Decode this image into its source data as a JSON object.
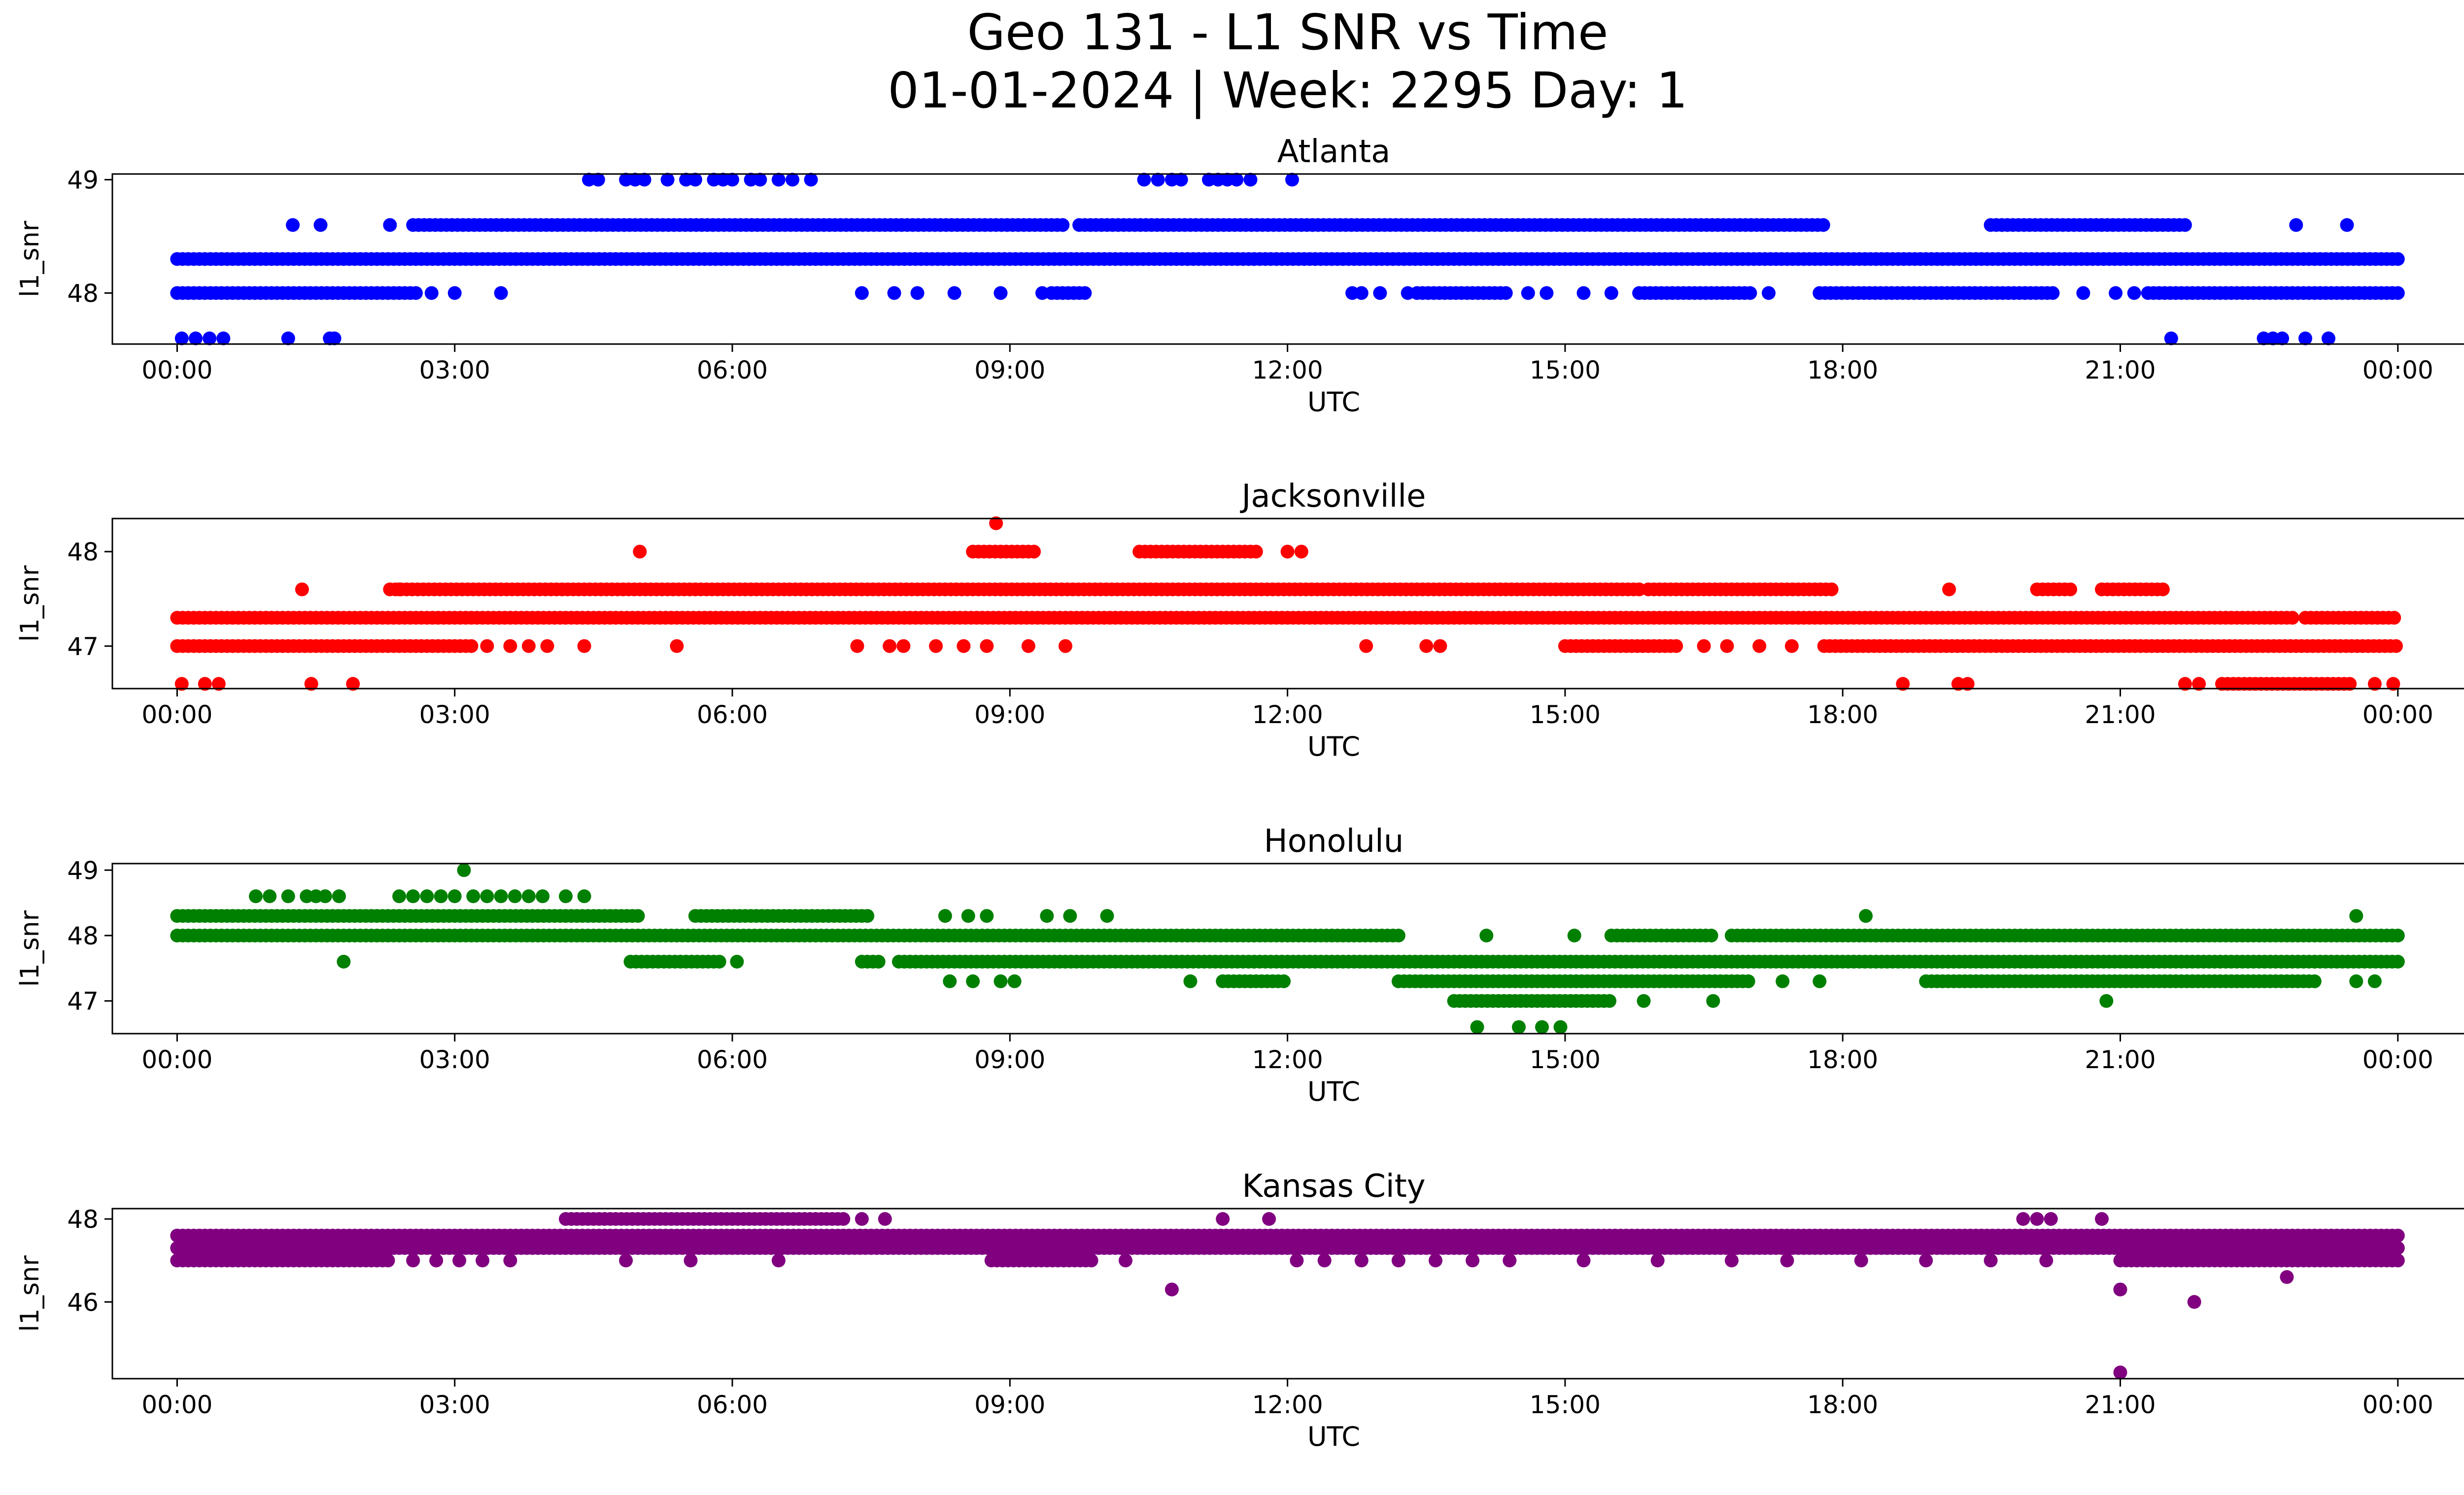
{
  "title_line1": "Geo 131 - L1 SNR vs Time",
  "title_line2": "01-01-2024 | Week: 2295 Day: 1",
  "chart_data": [
    {
      "type": "scatter",
      "title": "Atlanta",
      "xlabel": "UTC",
      "ylabel": "l1_snr",
      "color": "#0000ff",
      "xlim": [
        -0.7,
        25.7
      ],
      "ylim": [
        47.55,
        49.05
      ],
      "xticks": [
        "00:00",
        "03:00",
        "06:00",
        "09:00",
        "12:00",
        "15:00",
        "18:00",
        "21:00",
        "00:00"
      ],
      "yticks": [
        48,
        49
      ],
      "x_unit": "hours UTC",
      "bands": [
        {
          "y": 48.3,
          "ranges": [
            [
              0.0,
              24.0
            ]
          ]
        },
        {
          "y": 48.6,
          "ranges": [
            [
              2.55,
              9.6
            ],
            [
              9.75,
              17.8
            ],
            [
              19.6,
              21.7
            ]
          ]
        },
        {
          "y": 48.0,
          "ranges": [
            [
              0.0,
              2.6
            ],
            [
              9.45,
              9.85
            ],
            [
              13.4,
              14.4
            ],
            [
              15.8,
              17.0
            ],
            [
              17.75,
              20.3
            ],
            [
              21.3,
              24.0
            ]
          ]
        }
      ],
      "points": [
        {
          "x": 1.25,
          "y": 48.6
        },
        {
          "x": 1.55,
          "y": 48.6
        },
        {
          "x": 2.3,
          "y": 48.6
        },
        {
          "x": 22.9,
          "y": 48.6
        },
        {
          "x": 23.45,
          "y": 48.6
        },
        {
          "x": 2.75,
          "y": 48.0
        },
        {
          "x": 3.0,
          "y": 48.0
        },
        {
          "x": 3.5,
          "y": 48.0
        },
        {
          "x": 7.4,
          "y": 48.0
        },
        {
          "x": 7.75,
          "y": 48.0
        },
        {
          "x": 8.0,
          "y": 48.0
        },
        {
          "x": 8.4,
          "y": 48.0
        },
        {
          "x": 8.9,
          "y": 48.0
        },
        {
          "x": 9.35,
          "y": 48.0
        },
        {
          "x": 12.7,
          "y": 48.0
        },
        {
          "x": 12.8,
          "y": 48.0
        },
        {
          "x": 13.0,
          "y": 48.0
        },
        {
          "x": 13.3,
          "y": 48.0
        },
        {
          "x": 14.6,
          "y": 48.0
        },
        {
          "x": 14.8,
          "y": 48.0
        },
        {
          "x": 15.2,
          "y": 48.0
        },
        {
          "x": 15.5,
          "y": 48.0
        },
        {
          "x": 17.2,
          "y": 48.0
        },
        {
          "x": 20.6,
          "y": 48.0
        },
        {
          "x": 20.95,
          "y": 48.0
        },
        {
          "x": 21.15,
          "y": 48.0
        },
        {
          "x": 4.45,
          "y": 49.0
        },
        {
          "x": 4.55,
          "y": 49.0
        },
        {
          "x": 4.85,
          "y": 49.0
        },
        {
          "x": 4.95,
          "y": 49.0
        },
        {
          "x": 5.05,
          "y": 49.0
        },
        {
          "x": 5.3,
          "y": 49.0
        },
        {
          "x": 5.5,
          "y": 49.0
        },
        {
          "x": 5.6,
          "y": 49.0
        },
        {
          "x": 5.8,
          "y": 49.0
        },
        {
          "x": 5.9,
          "y": 49.0
        },
        {
          "x": 6.0,
          "y": 49.0
        },
        {
          "x": 6.2,
          "y": 49.0
        },
        {
          "x": 6.3,
          "y": 49.0
        },
        {
          "x": 6.5,
          "y": 49.0
        },
        {
          "x": 6.65,
          "y": 49.0
        },
        {
          "x": 6.85,
          "y": 49.0
        },
        {
          "x": 10.45,
          "y": 49.0
        },
        {
          "x": 10.6,
          "y": 49.0
        },
        {
          "x": 10.75,
          "y": 49.0
        },
        {
          "x": 10.85,
          "y": 49.0
        },
        {
          "x": 11.15,
          "y": 49.0
        },
        {
          "x": 11.25,
          "y": 49.0
        },
        {
          "x": 11.35,
          "y": 49.0
        },
        {
          "x": 11.45,
          "y": 49.0
        },
        {
          "x": 11.6,
          "y": 49.0
        },
        {
          "x": 12.05,
          "y": 49.0
        },
        {
          "x": 0.05,
          "y": 47.6
        },
        {
          "x": 0.2,
          "y": 47.6
        },
        {
          "x": 0.35,
          "y": 47.6
        },
        {
          "x": 0.5,
          "y": 47.6
        },
        {
          "x": 1.2,
          "y": 47.6
        },
        {
          "x": 1.65,
          "y": 47.6
        },
        {
          "x": 1.7,
          "y": 47.6
        },
        {
          "x": 21.55,
          "y": 47.6
        },
        {
          "x": 22.55,
          "y": 47.6
        },
        {
          "x": 22.65,
          "y": 47.6
        },
        {
          "x": 22.75,
          "y": 47.6
        },
        {
          "x": 23.0,
          "y": 47.6
        },
        {
          "x": 23.25,
          "y": 47.6
        }
      ]
    },
    {
      "type": "scatter",
      "title": "Jacksonville",
      "xlabel": "UTC",
      "ylabel": "l1_snr",
      "color": "#ff0000",
      "xlim": [
        -0.7,
        25.7
      ],
      "ylim": [
        46.55,
        48.35
      ],
      "xticks": [
        "00:00",
        "03:00",
        "06:00",
        "09:00",
        "12:00",
        "15:00",
        "18:00",
        "21:00",
        "00:00"
      ],
      "yticks": [
        47,
        48
      ],
      "x_unit": "hours UTC",
      "bands": [
        {
          "y": 47.3,
          "ranges": [
            [
              0.0,
              22.9
            ],
            [
              23.0,
              24.0
            ]
          ]
        },
        {
          "y": 47.6,
          "ranges": [
            [
              2.3,
              15.8
            ],
            [
              15.9,
              17.9
            ],
            [
              20.1,
              20.5
            ],
            [
              20.8,
              21.5
            ]
          ]
        },
        {
          "y": 47.0,
          "ranges": [
            [
              0.0,
              3.2
            ],
            [
              15.0,
              16.2
            ],
            [
              17.8,
              24.0
            ]
          ]
        },
        {
          "y": 48.0,
          "ranges": [
            [
              8.6,
              9.3
            ],
            [
              10.4,
              11.7
            ]
          ]
        },
        {
          "y": 46.6,
          "ranges": [
            [
              22.1,
              23.5
            ]
          ]
        }
      ],
      "points": [
        {
          "x": 1.35,
          "y": 47.6
        },
        {
          "x": 2.4,
          "y": 47.6
        },
        {
          "x": 19.15,
          "y": 47.6
        },
        {
          "x": 3.35,
          "y": 47.0
        },
        {
          "x": 3.6,
          "y": 47.0
        },
        {
          "x": 3.8,
          "y": 47.0
        },
        {
          "x": 4.0,
          "y": 47.0
        },
        {
          "x": 4.4,
          "y": 47.0
        },
        {
          "x": 5.4,
          "y": 47.0
        },
        {
          "x": 7.35,
          "y": 47.0
        },
        {
          "x": 7.7,
          "y": 47.0
        },
        {
          "x": 7.85,
          "y": 47.0
        },
        {
          "x": 8.2,
          "y": 47.0
        },
        {
          "x": 8.5,
          "y": 47.0
        },
        {
          "x": 8.75,
          "y": 47.0
        },
        {
          "x": 9.2,
          "y": 47.0
        },
        {
          "x": 9.6,
          "y": 47.0
        },
        {
          "x": 12.85,
          "y": 47.0
        },
        {
          "x": 13.5,
          "y": 47.0
        },
        {
          "x": 13.65,
          "y": 47.0
        },
        {
          "x": 16.5,
          "y": 47.0
        },
        {
          "x": 16.75,
          "y": 47.0
        },
        {
          "x": 17.1,
          "y": 47.0
        },
        {
          "x": 17.45,
          "y": 47.0
        },
        {
          "x": 5.0,
          "y": 48.0
        },
        {
          "x": 12.0,
          "y": 48.0
        },
        {
          "x": 12.15,
          "y": 48.0
        },
        {
          "x": 8.85,
          "y": 48.3
        },
        {
          "x": 0.05,
          "y": 46.6
        },
        {
          "x": 0.3,
          "y": 46.6
        },
        {
          "x": 0.45,
          "y": 46.6
        },
        {
          "x": 1.45,
          "y": 46.6
        },
        {
          "x": 1.9,
          "y": 46.6
        },
        {
          "x": 18.65,
          "y": 46.6
        },
        {
          "x": 19.25,
          "y": 46.6
        },
        {
          "x": 19.35,
          "y": 46.6
        },
        {
          "x": 21.7,
          "y": 46.6
        },
        {
          "x": 21.85,
          "y": 46.6
        },
        {
          "x": 23.75,
          "y": 46.6
        },
        {
          "x": 23.95,
          "y": 46.6
        }
      ]
    },
    {
      "type": "scatter",
      "title": "Honolulu",
      "xlabel": "UTC",
      "ylabel": "l1_snr",
      "color": "#008000",
      "xlim": [
        -0.7,
        25.7
      ],
      "ylim": [
        46.5,
        49.1
      ],
      "xticks": [
        "00:00",
        "03:00",
        "06:00",
        "09:00",
        "12:00",
        "15:00",
        "18:00",
        "21:00",
        "00:00"
      ],
      "yticks": [
        47,
        48,
        49
      ],
      "x_unit": "hours UTC",
      "bands": [
        {
          "y": 48.3,
          "ranges": [
            [
              0.0,
              5.0
            ],
            [
              5.6,
              7.5
            ]
          ]
        },
        {
          "y": 48.0,
          "ranges": [
            [
              0.0,
              13.2
            ],
            [
              15.5,
              16.6
            ],
            [
              16.8,
              24.0
            ]
          ]
        },
        {
          "y": 47.6,
          "ranges": [
            [
              4.9,
              5.9
            ],
            [
              7.4,
              7.6
            ],
            [
              7.8,
              24.0
            ]
          ]
        },
        {
          "y": 47.3,
          "ranges": [
            [
              11.3,
              12.0
            ],
            [
              13.2,
              17.0
            ],
            [
              18.9,
              23.1
            ]
          ]
        },
        {
          "y": 47.0,
          "ranges": [
            [
              13.8,
              15.5
            ]
          ]
        }
      ],
      "points": [
        {
          "x": 0.85,
          "y": 48.6
        },
        {
          "x": 1.0,
          "y": 48.6
        },
        {
          "x": 1.2,
          "y": 48.6
        },
        {
          "x": 1.4,
          "y": 48.6
        },
        {
          "x": 1.5,
          "y": 48.6
        },
        {
          "x": 1.6,
          "y": 48.6
        },
        {
          "x": 1.75,
          "y": 48.6
        },
        {
          "x": 2.4,
          "y": 48.6
        },
        {
          "x": 2.55,
          "y": 48.6
        },
        {
          "x": 2.7,
          "y": 48.6
        },
        {
          "x": 2.85,
          "y": 48.6
        },
        {
          "x": 3.0,
          "y": 48.6
        },
        {
          "x": 3.2,
          "y": 48.6
        },
        {
          "x": 3.35,
          "y": 48.6
        },
        {
          "x": 3.5,
          "y": 48.6
        },
        {
          "x": 3.65,
          "y": 48.6
        },
        {
          "x": 3.8,
          "y": 48.6
        },
        {
          "x": 3.95,
          "y": 48.6
        },
        {
          "x": 4.2,
          "y": 48.6
        },
        {
          "x": 4.4,
          "y": 48.6
        },
        {
          "x": 3.1,
          "y": 49.0
        },
        {
          "x": 1.8,
          "y": 47.6
        },
        {
          "x": 6.05,
          "y": 47.6
        },
        {
          "x": 8.3,
          "y": 48.3
        },
        {
          "x": 8.55,
          "y": 48.3
        },
        {
          "x": 8.75,
          "y": 48.3
        },
        {
          "x": 9.4,
          "y": 48.3
        },
        {
          "x": 9.65,
          "y": 48.3
        },
        {
          "x": 10.05,
          "y": 48.3
        },
        {
          "x": 18.25,
          "y": 48.3
        },
        {
          "x": 23.55,
          "y": 48.3
        },
        {
          "x": 14.15,
          "y": 48.0
        },
        {
          "x": 15.1,
          "y": 48.0
        },
        {
          "x": 8.35,
          "y": 47.3
        },
        {
          "x": 8.6,
          "y": 47.3
        },
        {
          "x": 8.9,
          "y": 47.3
        },
        {
          "x": 9.05,
          "y": 47.3
        },
        {
          "x": 10.95,
          "y": 47.3
        },
        {
          "x": 17.35,
          "y": 47.3
        },
        {
          "x": 17.75,
          "y": 47.3
        },
        {
          "x": 23.55,
          "y": 47.3
        },
        {
          "x": 23.75,
          "y": 47.3
        },
        {
          "x": 15.85,
          "y": 47.0
        },
        {
          "x": 16.6,
          "y": 47.0
        },
        {
          "x": 20.85,
          "y": 47.0
        },
        {
          "x": 14.05,
          "y": 46.6
        },
        {
          "x": 14.5,
          "y": 46.6
        },
        {
          "x": 14.75,
          "y": 46.6
        },
        {
          "x": 14.95,
          "y": 46.6
        }
      ]
    },
    {
      "type": "scatter",
      "title": "Kansas City",
      "xlabel": "UTC",
      "ylabel": "l1_snr",
      "color": "#800080",
      "xlim": [
        -0.7,
        25.7
      ],
      "ylim": [
        44.15,
        48.25
      ],
      "xticks": [
        "00:00",
        "03:00",
        "06:00",
        "09:00",
        "12:00",
        "15:00",
        "18:00",
        "21:00",
        "00:00"
      ],
      "yticks": [
        46,
        48
      ],
      "x_unit": "hours UTC",
      "bands": [
        {
          "y": 47.6,
          "ranges": [
            [
              0.0,
              24.0
            ]
          ]
        },
        {
          "y": 47.3,
          "ranges": [
            [
              0.0,
              24.0
            ]
          ]
        },
        {
          "y": 47.0,
          "ranges": [
            [
              0.0,
              2.3
            ],
            [
              8.8,
              9.9
            ],
            [
              21.0,
              24.0
            ]
          ]
        },
        {
          "y": 48.0,
          "ranges": [
            [
              4.2,
              7.2
            ]
          ]
        }
      ],
      "points": [
        {
          "x": 2.55,
          "y": 47.0
        },
        {
          "x": 2.8,
          "y": 47.0
        },
        {
          "x": 3.05,
          "y": 47.0
        },
        {
          "x": 3.3,
          "y": 47.0
        },
        {
          "x": 3.6,
          "y": 47.0
        },
        {
          "x": 4.85,
          "y": 47.0
        },
        {
          "x": 5.55,
          "y": 47.0
        },
        {
          "x": 6.5,
          "y": 47.0
        },
        {
          "x": 10.25,
          "y": 47.0
        },
        {
          "x": 12.1,
          "y": 47.0
        },
        {
          "x": 12.4,
          "y": 47.0
        },
        {
          "x": 12.8,
          "y": 47.0
        },
        {
          "x": 13.2,
          "y": 47.0
        },
        {
          "x": 13.6,
          "y": 47.0
        },
        {
          "x": 14.0,
          "y": 47.0
        },
        {
          "x": 14.4,
          "y": 47.0
        },
        {
          "x": 15.2,
          "y": 47.0
        },
        {
          "x": 16.0,
          "y": 47.0
        },
        {
          "x": 16.8,
          "y": 47.0
        },
        {
          "x": 17.4,
          "y": 47.0
        },
        {
          "x": 18.2,
          "y": 47.0
        },
        {
          "x": 18.9,
          "y": 47.0
        },
        {
          "x": 19.6,
          "y": 47.0
        },
        {
          "x": 20.2,
          "y": 47.0
        },
        {
          "x": 7.4,
          "y": 48.0
        },
        {
          "x": 7.65,
          "y": 48.0
        },
        {
          "x": 11.3,
          "y": 48.0
        },
        {
          "x": 11.8,
          "y": 48.0
        },
        {
          "x": 19.95,
          "y": 48.0
        },
        {
          "x": 20.1,
          "y": 48.0
        },
        {
          "x": 20.25,
          "y": 48.0
        },
        {
          "x": 20.8,
          "y": 48.0
        },
        {
          "x": 10.75,
          "y": 46.3
        },
        {
          "x": 21.0,
          "y": 46.3
        },
        {
          "x": 21.8,
          "y": 46.0
        },
        {
          "x": 22.8,
          "y": 46.6
        },
        {
          "x": 21.0,
          "y": 44.3
        }
      ]
    }
  ]
}
